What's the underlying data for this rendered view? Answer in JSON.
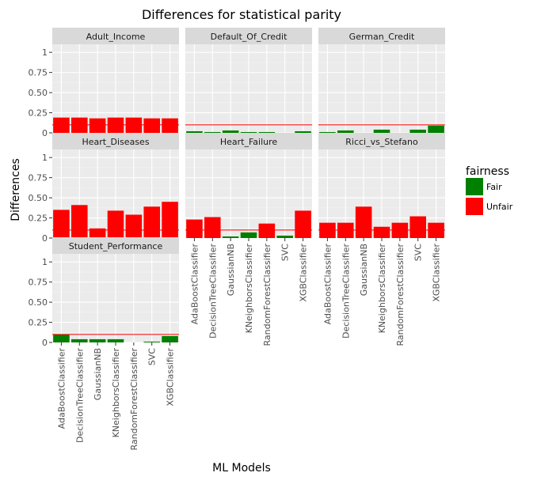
{
  "chart_data": {
    "type": "bar",
    "title": "Differences for statistical parity",
    "xlabel": "ML Models",
    "ylabel": "Differences",
    "ylim": [
      0,
      1.1
    ],
    "yticks": [
      0,
      0.25,
      0.5,
      0.75,
      1
    ],
    "ytick_labels": [
      "0",
      "0.25",
      "0.50",
      "0.75",
      "1"
    ],
    "threshold": 0.1,
    "threshold_color": "#ff0000",
    "categories": [
      "AdaBoostClassifier",
      "DecisionTreeClassifier",
      "GaussianNB",
      "KNeighborsClassifier",
      "RandomForestClassifier",
      "SVC",
      "XGBClassifier"
    ],
    "legend": {
      "title": "fairness",
      "position": "right",
      "entries": [
        {
          "label": "Fair",
          "color": "#008000"
        },
        {
          "label": "Unfair",
          "color": "#ff0000"
        }
      ]
    },
    "facets": [
      {
        "name": "Adult_Income",
        "values": [
          0.19,
          0.19,
          0.18,
          0.19,
          0.19,
          0.18,
          0.18
        ],
        "fairness": [
          "Unfair",
          "Unfair",
          "Unfair",
          "Unfair",
          "Unfair",
          "Unfair",
          "Unfair"
        ]
      },
      {
        "name": "Default_Of_Credit",
        "values": [
          0.02,
          0.01,
          0.03,
          0.01,
          0.01,
          0.0,
          0.02
        ],
        "fairness": [
          "Fair",
          "Fair",
          "Fair",
          "Fair",
          "Fair",
          "Fair",
          "Fair"
        ]
      },
      {
        "name": "German_Credit",
        "values": [
          0.01,
          0.03,
          0.0,
          0.04,
          0.0,
          0.04,
          0.09
        ],
        "fairness": [
          "Fair",
          "Fair",
          "Fair",
          "Fair",
          "Fair",
          "Fair",
          "Fair"
        ]
      },
      {
        "name": "Heart_Diseases",
        "values": [
          0.35,
          0.41,
          0.12,
          0.34,
          0.29,
          0.39,
          0.45
        ],
        "fairness": [
          "Unfair",
          "Unfair",
          "Unfair",
          "Unfair",
          "Unfair",
          "Unfair",
          "Unfair"
        ]
      },
      {
        "name": "Heart_Failure",
        "values": [
          0.23,
          0.26,
          0.02,
          0.07,
          0.18,
          0.03,
          0.34
        ],
        "fairness": [
          "Unfair",
          "Unfair",
          "Fair",
          "Fair",
          "Unfair",
          "Fair",
          "Unfair"
        ]
      },
      {
        "name": "Ricci_vs_Stefano",
        "values": [
          0.19,
          0.19,
          0.39,
          0.14,
          0.19,
          0.27,
          0.19
        ],
        "fairness": [
          "Unfair",
          "Unfair",
          "Unfair",
          "Unfair",
          "Unfair",
          "Unfair",
          "Unfair"
        ]
      },
      {
        "name": "Student_Performance",
        "values": [
          0.1,
          0.04,
          0.04,
          0.04,
          0.0,
          0.01,
          0.08
        ],
        "fairness": [
          "Fair",
          "Fair",
          "Fair",
          "Fair",
          "Fair",
          "Fair",
          "Fair"
        ]
      }
    ]
  }
}
